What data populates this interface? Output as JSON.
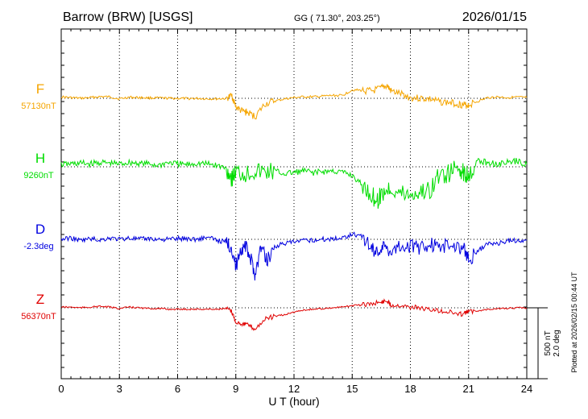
{
  "header": {
    "station": "Barrow (BRW)  [USGS]",
    "coords": "GG ( 71.30°, 203.25°)",
    "date": "2026/01/15"
  },
  "footer": {
    "plotted": "Plotted at 2026/02/15 00:44 UT"
  },
  "chart_data": {
    "type": "line",
    "title": "Barrow (BRW)  [USGS]",
    "xlabel": "U T (hour)",
    "xlim": [
      0,
      24
    ],
    "x_ticks": [
      "0",
      "3",
      "6",
      "9",
      "12",
      "15",
      "18",
      "21",
      "24"
    ],
    "grid": true,
    "scale_bar": {
      "nt_label": "500 nT",
      "deg_label": "2.0 deg",
      "nt_per_bar": 500,
      "deg_per_bar": 2.0
    },
    "series": [
      {
        "name": "F",
        "baseline": "57130nT",
        "color": "#f5a500",
        "x": [
          0,
          0.5,
          1,
          1.5,
          2,
          2.5,
          3,
          3.5,
          4,
          4.5,
          5,
          5.5,
          6,
          6.5,
          7,
          7.5,
          8,
          8.5,
          8.8,
          9,
          9.3,
          9.6,
          10,
          10.5,
          11,
          11.5,
          12,
          12.5,
          13,
          13.5,
          14,
          14.5,
          15,
          15.5,
          16,
          16.5,
          16.8,
          17,
          17.5,
          18,
          18.5,
          19,
          19.5,
          20,
          20.5,
          20.8,
          21,
          21.5,
          22,
          22.5,
          23,
          23.5,
          24
        ],
        "y": [
          10,
          5,
          0,
          5,
          12,
          10,
          -4,
          8,
          5,
          3,
          2,
          0,
          0,
          -2,
          -1,
          -3,
          -4,
          -2,
          20,
          -60,
          -90,
          -100,
          -130,
          -40,
          -20,
          -5,
          5,
          10,
          10,
          15,
          20,
          20,
          60,
          55,
          50,
          70,
          90,
          50,
          30,
          5,
          0,
          -5,
          -25,
          -30,
          -40,
          -50,
          -45,
          -20,
          5,
          10,
          5,
          8,
          5
        ]
      },
      {
        "name": "H",
        "baseline": "9260nT",
        "color": "#00dd00",
        "x": [
          0,
          0.5,
          1,
          1.5,
          2,
          2.5,
          3,
          3.5,
          4,
          4.5,
          5,
          5.5,
          6,
          6.5,
          7,
          7.5,
          8,
          8.5,
          8.8,
          9,
          9.5,
          10,
          10.5,
          11,
          11.5,
          12,
          12.5,
          13,
          13.5,
          14,
          14.5,
          15,
          15.5,
          16,
          16.3,
          16.6,
          17,
          17.5,
          18,
          18.5,
          19,
          19.5,
          20,
          20.5,
          20.8,
          21,
          21.5,
          22,
          22.5,
          23,
          23.5,
          24
        ],
        "y": [
          15,
          20,
          25,
          20,
          30,
          25,
          20,
          30,
          25,
          20,
          10,
          30,
          20,
          15,
          25,
          20,
          10,
          -10,
          -80,
          -40,
          -50,
          -30,
          -40,
          -30,
          -50,
          -40,
          -30,
          -40,
          -35,
          -30,
          -40,
          -60,
          -130,
          -200,
          -240,
          -180,
          -150,
          -190,
          -200,
          -180,
          -170,
          -60,
          -50,
          0,
          -60,
          -40,
          40,
          30,
          20,
          30,
          40,
          20
        ]
      },
      {
        "name": "D",
        "baseline": "-2.3deg",
        "color": "#0000e0",
        "x": [
          0,
          0.5,
          1,
          1.5,
          2,
          2.5,
          3,
          3.5,
          4,
          4.5,
          5,
          5.5,
          6,
          6.5,
          7,
          7.5,
          8,
          8.5,
          8.8,
          9,
          9.2,
          9.5,
          9.8,
          10,
          10.3,
          10.6,
          11,
          11.5,
          12,
          12.5,
          13,
          13.5,
          14,
          14.5,
          15,
          15.5,
          16,
          16.3,
          16.6,
          17,
          17.5,
          18,
          18.5,
          19,
          19.5,
          20,
          20.5,
          20.8,
          21,
          21.5,
          22,
          22.5,
          23,
          23.5,
          24
        ],
        "y": [
          0,
          10,
          -10,
          5,
          -5,
          10,
          0,
          10,
          0,
          5,
          0,
          0,
          5,
          5,
          0,
          15,
          -5,
          -20,
          -60,
          -200,
          -80,
          -50,
          -150,
          -250,
          -50,
          -150,
          -50,
          -30,
          -20,
          -10,
          -5,
          0,
          5,
          10,
          40,
          20,
          -60,
          -90,
          -50,
          -80,
          -40,
          -50,
          -60,
          -30,
          -60,
          -40,
          -50,
          -70,
          -150,
          -80,
          -30,
          -30,
          -10,
          -10,
          -5
        ]
      },
      {
        "name": "Z",
        "baseline": "56370nT",
        "color": "#e00000",
        "x": [
          0,
          0.5,
          1,
          1.5,
          2,
          2.5,
          3,
          3.5,
          4,
          4.5,
          5,
          5.5,
          6,
          6.5,
          7,
          7.5,
          8,
          8.5,
          8.8,
          9,
          9.3,
          9.6,
          10,
          10.5,
          11,
          11.5,
          12,
          12.5,
          13,
          13.5,
          14,
          14.5,
          15,
          15.5,
          16,
          16.5,
          16.8,
          17,
          17.5,
          18,
          18.5,
          19,
          19.5,
          20,
          20.5,
          20.8,
          21,
          21.5,
          22,
          22.5,
          23,
          23.5,
          24
        ],
        "y": [
          5,
          5,
          0,
          5,
          10,
          5,
          -5,
          5,
          0,
          -5,
          -5,
          -10,
          -10,
          -10,
          -10,
          -10,
          -10,
          -5,
          -30,
          -100,
          -110,
          -120,
          -150,
          -80,
          -60,
          -50,
          -30,
          -15,
          -10,
          -5,
          0,
          5,
          15,
          20,
          30,
          40,
          50,
          20,
          20,
          5,
          0,
          -15,
          -20,
          -30,
          -45,
          -40,
          -25,
          -20,
          -10,
          -5,
          -5,
          0,
          0
        ]
      }
    ]
  }
}
